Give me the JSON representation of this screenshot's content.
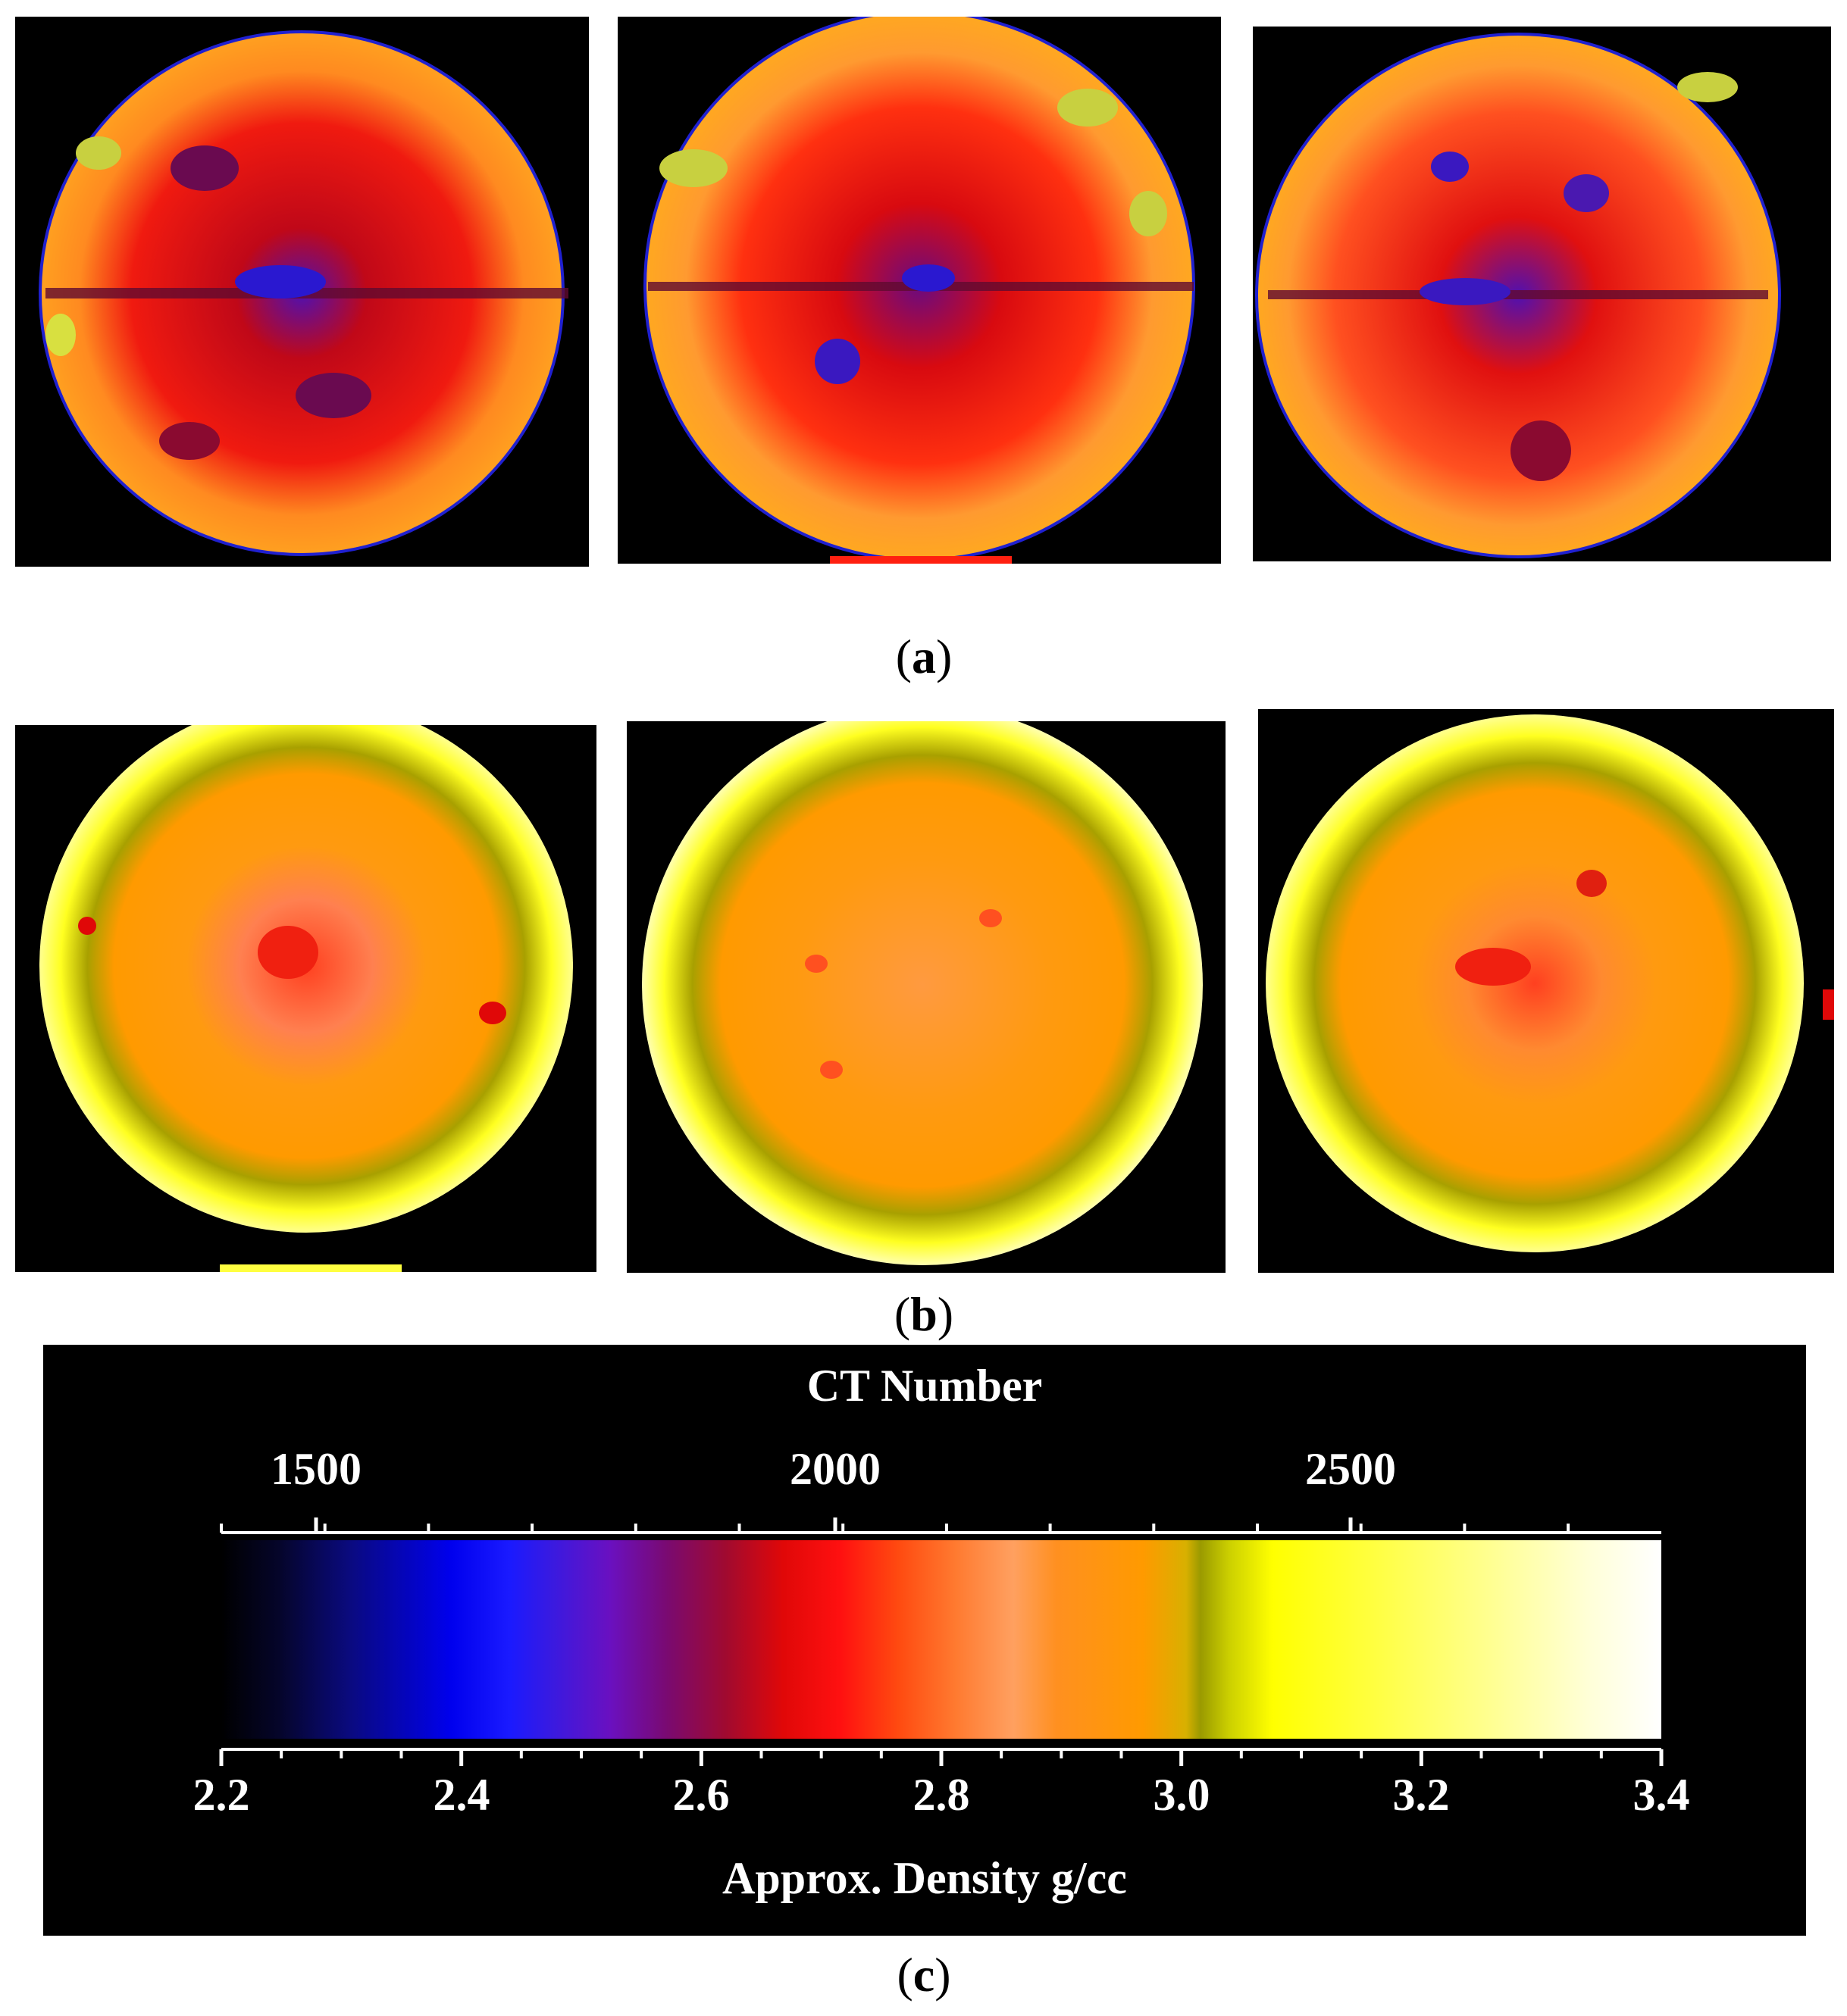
{
  "captions": {
    "a": "a",
    "b": "b",
    "c": "c"
  },
  "colorbar": {
    "title": "CT Number",
    "bottom_title": "Approx. Density g/cc",
    "ct_ticks": [
      "1500",
      "2000",
      "2500"
    ],
    "density_ticks": [
      "2.2",
      "2.4",
      "2.6",
      "2.8",
      "3.0",
      "3.2",
      "3.4"
    ],
    "colors": {
      "low": "#000000",
      "blue": "#0000ee",
      "red": "#ff1010",
      "orange": "#ff9a00",
      "yellow": "#ffff00",
      "high": "#ffffff"
    }
  }
}
